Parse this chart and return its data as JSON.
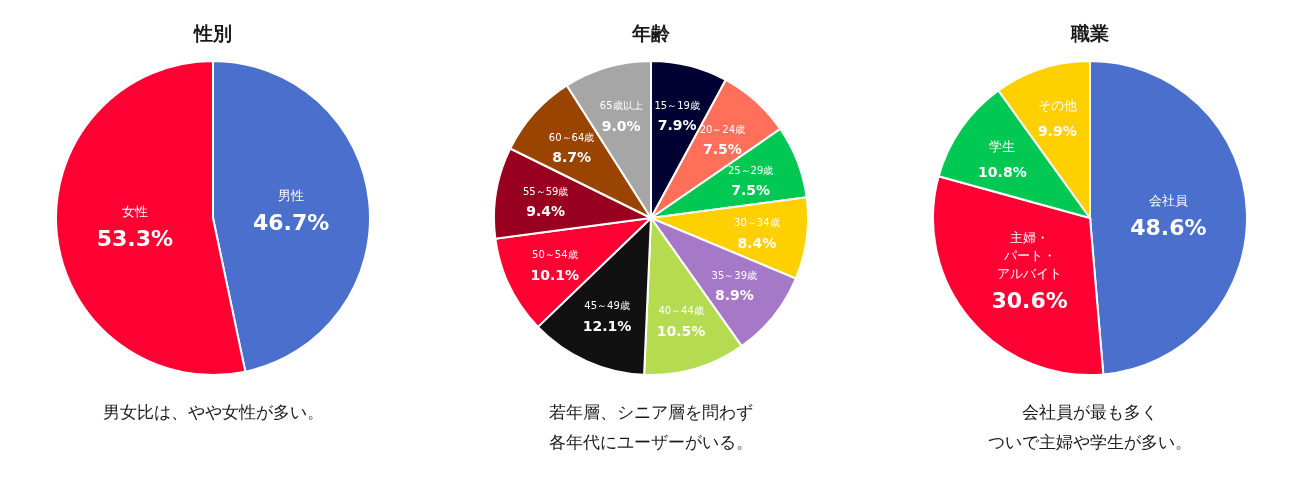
{
  "chart_data": [
    {
      "type": "pie",
      "title": "性別",
      "categories": [
        "男性",
        "女性"
      ],
      "values": [
        46.7,
        53.3
      ],
      "value_labels": [
        "46.7%",
        "53.3%"
      ],
      "colors": [
        "#4a6fcc",
        "#ff0033"
      ],
      "legend": false,
      "annotations": [
        "男女比は、やや女性が多い。"
      ]
    },
    {
      "type": "pie",
      "title": "年齢",
      "categories": [
        "15～19歳",
        "20～24歳",
        "25～29歳",
        "30～34歳",
        "35～39歳",
        "40～44歳",
        "45～49歳",
        "50～54歳",
        "55～59歳",
        "60～64歳",
        "65歳以上"
      ],
      "values": [
        7.9,
        7.5,
        7.5,
        8.4,
        8.9,
        10.5,
        12.1,
        10.1,
        9.4,
        8.7,
        9.0
      ],
      "value_labels": [
        "7.9%",
        "7.5%",
        "7.5%",
        "8.4%",
        "8.9%",
        "10.5%",
        "12.1%",
        "10.1%",
        "9.4%",
        "8.7%",
        "9.0%"
      ],
      "colors": [
        "#000033",
        "#ff6f59",
        "#00c853",
        "#ffd000",
        "#a678c8",
        "#b5dc50",
        "#111111",
        "#ff0033",
        "#99001f",
        "#994400",
        "#a6a6a6"
      ],
      "legend": false,
      "annotations": [
        "若年層、シニア層を問わず",
        "各年代にユーザーがいる。"
      ]
    },
    {
      "type": "pie",
      "title": "職業",
      "categories": [
        "会社員",
        "主婦・パート・アルバイト",
        "学生",
        "その他"
      ],
      "values": [
        48.6,
        30.6,
        10.8,
        9.9
      ],
      "value_labels": [
        "48.6%",
        "30.6%",
        "10.8%",
        "9.9%"
      ],
      "colors": [
        "#4a6fcc",
        "#ff0033",
        "#00c853",
        "#ffd000"
      ],
      "legend": false,
      "annotations": [
        "会社員が最も多く",
        "ついで主婦や学生が多い。"
      ]
    }
  ]
}
